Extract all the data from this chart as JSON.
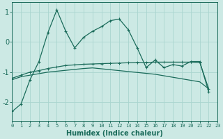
{
  "xlabel": "Humidex (Indice chaleur)",
  "x": [
    0,
    1,
    2,
    3,
    4,
    5,
    6,
    7,
    8,
    9,
    10,
    11,
    12,
    13,
    14,
    15,
    16,
    17,
    18,
    19,
    20,
    21,
    22,
    23
  ],
  "line1": [
    -2.3,
    -2.05,
    -1.25,
    -0.65,
    0.3,
    1.05,
    0.35,
    -0.2,
    0.15,
    0.35,
    0.5,
    0.7,
    0.75,
    0.4,
    -0.2,
    -0.85,
    -0.6,
    -0.85,
    -0.75,
    -0.8,
    -0.65,
    -0.65,
    -1.65,
    null
  ],
  "line2": [
    -1.2,
    -1.1,
    -1.0,
    -0.95,
    -0.88,
    -0.83,
    -0.78,
    -0.76,
    -0.74,
    -0.73,
    -0.72,
    -0.71,
    -0.7,
    -0.69,
    -0.68,
    -0.68,
    -0.67,
    -0.67,
    -0.67,
    -0.67,
    -0.67,
    -0.68,
    -1.55,
    null
  ],
  "line3": [
    -1.25,
    -1.15,
    -1.1,
    -1.05,
    -1.0,
    -0.97,
    -0.94,
    -0.91,
    -0.88,
    -0.86,
    -0.89,
    -0.92,
    -0.95,
    -0.98,
    -1.01,
    -1.04,
    -1.07,
    -1.12,
    -1.17,
    -1.22,
    -1.27,
    -1.32,
    -1.55,
    null
  ],
  "bg_color": "#cce9e4",
  "line_color": "#1a6b5a",
  "grid_color": "#aad5cf",
  "ylim": [
    -2.6,
    1.3
  ],
  "yticks": [
    -2,
    -1,
    0,
    1
  ],
  "xlim": [
    0,
    23
  ]
}
